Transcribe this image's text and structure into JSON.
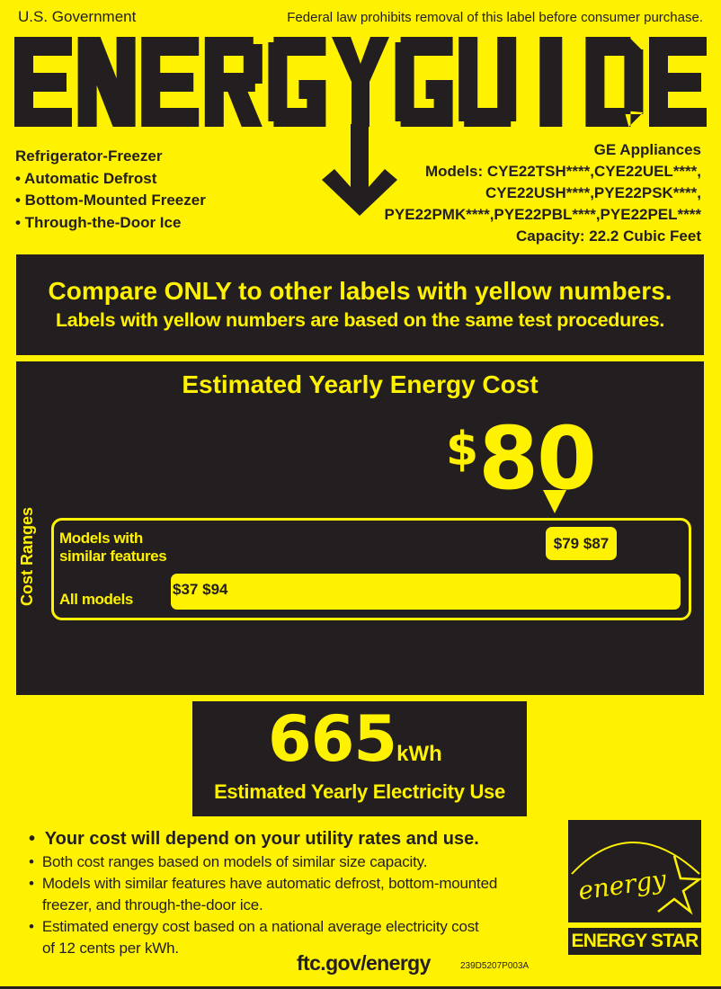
{
  "header": {
    "left": "U.S. Government",
    "right": "Federal law prohibits removal of this label before consumer purchase.",
    "logo": "ENERGYGUIDE"
  },
  "product": {
    "type": "Refrigerator-Freezer",
    "features": [
      "• Automatic Defrost",
      "• Bottom-Mounted Freezer",
      "• Through-the-Door Ice"
    ]
  },
  "maker": {
    "brand": "GE Appliances",
    "models": [
      "Models: CYE22TSH****,CYE22UEL****,",
      "CYE22USH****,PYE22PSK****,",
      "PYE22PMK****,PYE22PBL****,PYE22PEL****"
    ],
    "capacity": "Capacity: 22.2 Cubic Feet"
  },
  "compare": {
    "line1": "Compare ONLY to other labels with yellow numbers.",
    "line2": "Labels with yellow numbers are based on the same test procedures."
  },
  "cost": {
    "title": "Estimated Yearly Energy Cost",
    "currency": "$",
    "value": "80",
    "value_number": 80,
    "ranges_label": "Cost Ranges",
    "similar": {
      "label1": "Models with",
      "label2": "similar features",
      "low": "$79",
      "high": "$87",
      "min": 79,
      "max": 87
    },
    "all": {
      "label": "All models",
      "low": "$37",
      "high": "$94",
      "min": 37,
      "max": 94
    }
  },
  "usage": {
    "value": "665",
    "unit": "kWh",
    "label": "Estimated Yearly Electricity Use"
  },
  "notes": {
    "main": "Your cost will depend on your utility rates and use.",
    "items": [
      "Both cost ranges based on models of similar size capacity.",
      "Models with similar features have automatic defrost, bottom-mounted",
      "freezer, and through-the-door ice.",
      "Estimated energy cost based on a national average electricity cost",
      "of 12 cents per kWh."
    ]
  },
  "footer": {
    "link": "ftc.gov/energy",
    "code": "239D5207P003A"
  },
  "energy_star": {
    "script": "energy",
    "label": "ENERGY STAR"
  },
  "colors": {
    "yellow": "#fff200",
    "dark": "#231f20"
  }
}
